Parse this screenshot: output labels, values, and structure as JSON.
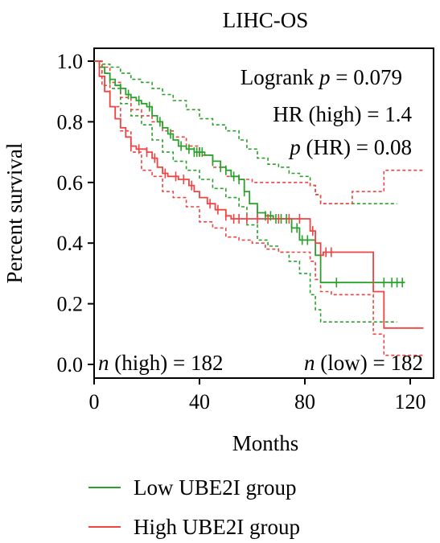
{
  "chart_data": {
    "type": "line",
    "title": "LIHC-OS",
    "xlabel": "Months",
    "ylabel": "Percent survival",
    "xlim": [
      0,
      125
    ],
    "ylim": [
      0,
      1.0
    ],
    "x_ticks": [
      "0",
      "40",
      "80",
      "120"
    ],
    "y_ticks": [
      "0.0",
      "0.2",
      "0.4",
      "0.6",
      "0.8",
      "1.0"
    ],
    "grid": false,
    "legend_position": "bottom-left",
    "annotations": {
      "logrank_prefix": "Logrank ",
      "logrank_p": "p",
      "logrank_value": " = 0.079",
      "hr_text": "HR (high) = 1.4",
      "phr_p": "p",
      "phr_value": " (HR) = 0.08",
      "n_high_n": "n",
      "n_high_value": " (high) = 182",
      "n_low_n": "n",
      "n_low_value": " (low) = 182"
    },
    "series": [
      {
        "name": "Low UBE2I group",
        "color": "#2ca02c",
        "steps": [
          [
            0,
            1.0
          ],
          [
            2,
            0.98
          ],
          [
            4,
            0.96
          ],
          [
            6,
            0.94
          ],
          [
            8,
            0.92
          ],
          [
            10,
            0.91
          ],
          [
            12,
            0.89
          ],
          [
            14,
            0.88
          ],
          [
            16,
            0.87
          ],
          [
            18,
            0.86
          ],
          [
            20,
            0.85
          ],
          [
            22,
            0.82
          ],
          [
            24,
            0.8
          ],
          [
            26,
            0.78
          ],
          [
            28,
            0.76
          ],
          [
            30,
            0.74
          ],
          [
            32,
            0.72
          ],
          [
            35,
            0.71
          ],
          [
            38,
            0.7
          ],
          [
            42,
            0.69
          ],
          [
            45,
            0.67
          ],
          [
            48,
            0.65
          ],
          [
            50,
            0.64
          ],
          [
            52,
            0.62
          ],
          [
            55,
            0.61
          ],
          [
            57,
            0.57
          ],
          [
            59,
            0.53
          ],
          [
            62,
            0.5
          ],
          [
            65,
            0.49
          ],
          [
            68,
            0.48
          ],
          [
            75,
            0.45
          ],
          [
            78,
            0.41
          ],
          [
            84,
            0.36
          ],
          [
            86,
            0.27
          ],
          [
            118,
            0.27
          ]
        ],
        "censor_x": [
          6,
          10,
          13,
          17,
          21,
          25,
          29,
          33,
          36,
          38,
          39,
          40,
          41,
          45,
          48,
          50,
          53,
          55,
          57,
          62,
          65,
          67,
          69,
          71,
          73,
          75,
          77,
          79,
          81,
          92,
          110,
          113,
          115,
          117
        ],
        "upper_ci": [
          [
            0,
            1.0
          ],
          [
            3,
            0.99
          ],
          [
            6,
            0.98
          ],
          [
            10,
            0.96
          ],
          [
            14,
            0.94
          ],
          [
            18,
            0.93
          ],
          [
            22,
            0.91
          ],
          [
            26,
            0.89
          ],
          [
            30,
            0.87
          ],
          [
            35,
            0.84
          ],
          [
            40,
            0.81
          ],
          [
            45,
            0.79
          ],
          [
            50,
            0.77
          ],
          [
            55,
            0.74
          ],
          [
            58,
            0.71
          ],
          [
            62,
            0.68
          ],
          [
            66,
            0.66
          ],
          [
            70,
            0.65
          ],
          [
            74,
            0.63
          ],
          [
            78,
            0.62
          ],
          [
            82,
            0.59
          ],
          [
            84,
            0.56
          ],
          [
            86,
            0.53
          ],
          [
            115,
            0.53
          ]
        ],
        "lower_ci": [
          [
            0,
            1.0
          ],
          [
            3,
            0.96
          ],
          [
            6,
            0.91
          ],
          [
            10,
            0.86
          ],
          [
            14,
            0.82
          ],
          [
            18,
            0.79
          ],
          [
            22,
            0.74
          ],
          [
            26,
            0.7
          ],
          [
            30,
            0.67
          ],
          [
            35,
            0.64
          ],
          [
            40,
            0.61
          ],
          [
            45,
            0.58
          ],
          [
            50,
            0.55
          ],
          [
            55,
            0.52
          ],
          [
            58,
            0.46
          ],
          [
            62,
            0.41
          ],
          [
            66,
            0.39
          ],
          [
            70,
            0.37
          ],
          [
            74,
            0.34
          ],
          [
            78,
            0.3
          ],
          [
            82,
            0.23
          ],
          [
            84,
            0.18
          ],
          [
            86,
            0.14
          ],
          [
            115,
            0.14
          ]
        ]
      },
      {
        "name": "High UBE2I group",
        "color": "#ef4444",
        "steps": [
          [
            0,
            1.0
          ],
          [
            2,
            0.95
          ],
          [
            4,
            0.9
          ],
          [
            6,
            0.85
          ],
          [
            8,
            0.81
          ],
          [
            10,
            0.78
          ],
          [
            12,
            0.75
          ],
          [
            14,
            0.72
          ],
          [
            16,
            0.71
          ],
          [
            20,
            0.7
          ],
          [
            22,
            0.68
          ],
          [
            24,
            0.65
          ],
          [
            26,
            0.63
          ],
          [
            28,
            0.62
          ],
          [
            32,
            0.61
          ],
          [
            36,
            0.59
          ],
          [
            38,
            0.57
          ],
          [
            40,
            0.55
          ],
          [
            43,
            0.53
          ],
          [
            46,
            0.51
          ],
          [
            50,
            0.49
          ],
          [
            52,
            0.48
          ],
          [
            82,
            0.44
          ],
          [
            84,
            0.4
          ],
          [
            86,
            0.36
          ],
          [
            87,
            0.37
          ],
          [
            106,
            0.24
          ],
          [
            110,
            0.12
          ],
          [
            125,
            0.12
          ]
        ],
        "censor_x": [
          14,
          17,
          20,
          23,
          27,
          31,
          34,
          37,
          44,
          47,
          50,
          53,
          55,
          58,
          62,
          66,
          70,
          74,
          78,
          83,
          88,
          90
        ],
        "upper_ci": [
          [
            0,
            1.0
          ],
          [
            3,
            0.98
          ],
          [
            6,
            0.93
          ],
          [
            10,
            0.88
          ],
          [
            14,
            0.84
          ],
          [
            18,
            0.82
          ],
          [
            22,
            0.8
          ],
          [
            26,
            0.77
          ],
          [
            30,
            0.75
          ],
          [
            35,
            0.72
          ],
          [
            40,
            0.69
          ],
          [
            45,
            0.65
          ],
          [
            50,
            0.62
          ],
          [
            55,
            0.61
          ],
          [
            60,
            0.6
          ],
          [
            65,
            0.6
          ],
          [
            70,
            0.6
          ],
          [
            82,
            0.59
          ],
          [
            84,
            0.56
          ],
          [
            86,
            0.53
          ],
          [
            90,
            0.53
          ],
          [
            98,
            0.57
          ],
          [
            106,
            0.57
          ],
          [
            110,
            0.64
          ],
          [
            125,
            0.64
          ]
        ],
        "lower_ci": [
          [
            0,
            1.0
          ],
          [
            3,
            0.92
          ],
          [
            6,
            0.85
          ],
          [
            10,
            0.77
          ],
          [
            14,
            0.7
          ],
          [
            18,
            0.64
          ],
          [
            22,
            0.62
          ],
          [
            26,
            0.57
          ],
          [
            30,
            0.55
          ],
          [
            35,
            0.52
          ],
          [
            40,
            0.47
          ],
          [
            45,
            0.45
          ],
          [
            50,
            0.42
          ],
          [
            55,
            0.41
          ],
          [
            60,
            0.4
          ],
          [
            65,
            0.38
          ],
          [
            70,
            0.37
          ],
          [
            82,
            0.34
          ],
          [
            84,
            0.28
          ],
          [
            86,
            0.24
          ],
          [
            90,
            0.23
          ],
          [
            106,
            0.1
          ],
          [
            110,
            0.03
          ],
          [
            125,
            0.03
          ]
        ]
      }
    ]
  }
}
